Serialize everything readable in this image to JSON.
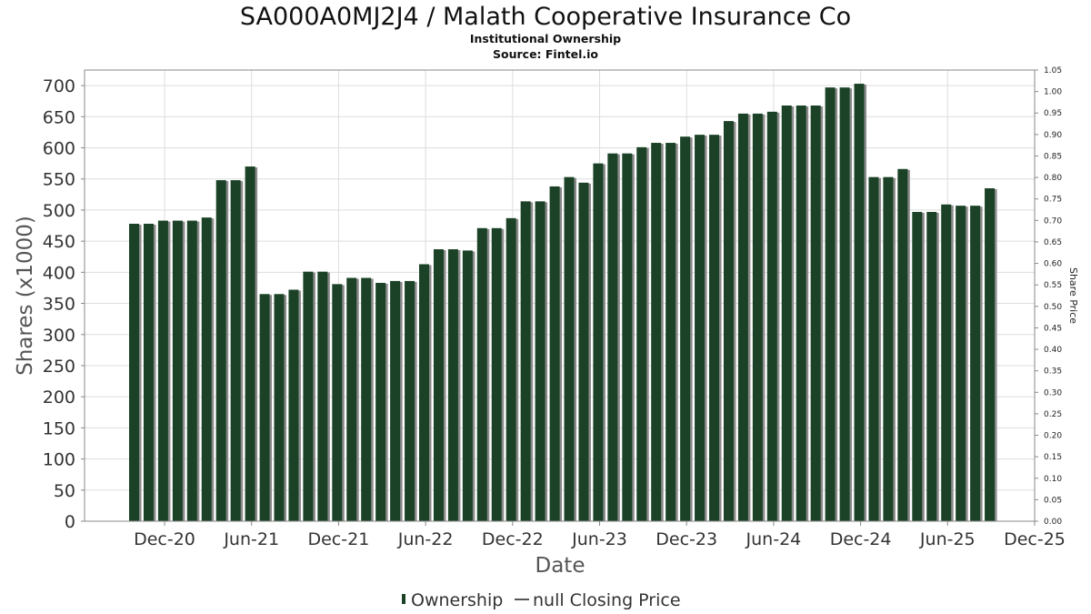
{
  "chart_data": {
    "type": "bar",
    "title": "SA000A0MJ2J4 / Malath Cooperative Insurance Co",
    "subtitle_lines": [
      "Institutional Ownership",
      "Source: Fintel.io"
    ],
    "xlabel": "Date",
    "ylabel": "Shares (x1000)",
    "y2label": "Share Price",
    "ylim": [
      0,
      725
    ],
    "y_ticks": [
      "0",
      "50",
      "100",
      "150",
      "200",
      "250",
      "300",
      "350",
      "400",
      "450",
      "500",
      "550",
      "600",
      "650",
      "700"
    ],
    "y2lim": [
      0,
      1.05
    ],
    "y2_ticks": [
      "0.00",
      "0.05",
      "0.10",
      "0.15",
      "0.20",
      "0.25",
      "0.30",
      "0.35",
      "0.40",
      "0.45",
      "0.50",
      "0.55",
      "0.60",
      "0.65",
      "0.70",
      "0.75",
      "0.80",
      "0.85",
      "0.90",
      "0.95",
      "1.00",
      "1.05"
    ],
    "x_ticks": [
      "Dec-20",
      "Jun-21",
      "Dec-21",
      "Jun-22",
      "Dec-22",
      "Jun-23",
      "Dec-23",
      "Jun-24",
      "Dec-24",
      "Jun-25",
      "Dec-25"
    ],
    "grid": true,
    "legend_position": "bottom-center",
    "series": [
      {
        "name": "Ownership",
        "color": "#1b4226",
        "values": [
          478,
          478,
          483,
          483,
          483,
          488,
          548,
          548,
          570,
          365,
          365,
          372,
          401,
          401,
          381,
          391,
          391,
          383,
          386,
          386,
          413,
          437,
          437,
          435,
          471,
          471,
          487,
          514,
          514,
          538,
          553,
          544,
          575,
          591,
          591,
          601,
          608,
          608,
          618,
          621,
          621,
          643,
          655,
          655,
          658,
          668,
          668,
          668,
          697,
          697,
          703,
          553,
          553,
          566,
          497,
          497,
          509,
          507,
          507,
          535
        ]
      },
      {
        "name": "null Closing Price",
        "color": "#555555",
        "values": []
      }
    ]
  }
}
